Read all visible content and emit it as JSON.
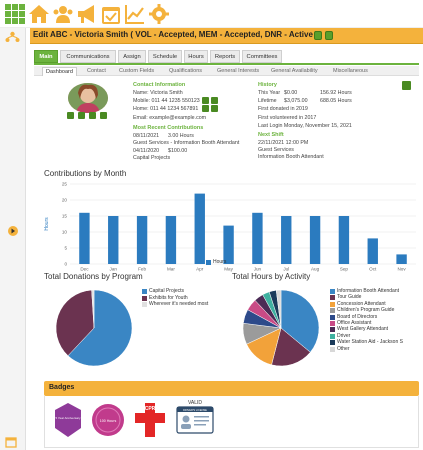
{
  "header": {
    "title": "Edit ABC - Victoria Smith ( VOL - Accepted, MEM - Accepted, DNR - Active )"
  },
  "toolbar_icons": [
    "grid-icon",
    "home-icon",
    "people-icon",
    "megaphone-icon",
    "calendar-check-icon",
    "trend-chart-icon",
    "gear-icon"
  ],
  "tabs": [
    "Main",
    "Communications",
    "Assign",
    "Schedule",
    "Hours",
    "Reports",
    "Committees"
  ],
  "active_tab": "Main",
  "subtabs": [
    "Dashboard",
    "Contact",
    "Custom Fields",
    "Qualifications",
    "General Interests",
    "General Availability",
    "Miscellaneous"
  ],
  "active_subtab": "Dashboard",
  "contact": {
    "heading": "Contact Information",
    "name": "Name: Victoria Smith",
    "mobile": "Mobile: 011 44 1235 550123",
    "home": "Home: 011 44 1234 567891",
    "email": "Email: example@example.com"
  },
  "contributions": {
    "heading": "Most Recent Contributions",
    "r1a": "08/11/2021",
    "r1b": "3.00 Hours",
    "r1c": "Guest Services - Information Booth Attendant",
    "r2a": "04/11/2020",
    "r2b": "$100.00",
    "r2c": "Capital Projects"
  },
  "history": {
    "heading": "History",
    "thisyear_label": "This Year",
    "thisyear_amount": "$0.00",
    "thisyear_hours": "156.92 Hours",
    "lifetime_label": "Lifetime",
    "lifetime_amount": "$3,075.00",
    "lifetime_hours": "688.05 Hours",
    "first_donated": "First donated in 2019",
    "first_volunteered": "First volunteered in 2017",
    "last_login": "Last Login Monday, November 15, 2021"
  },
  "next_shift": {
    "heading": "Next Shift",
    "date": "22/11/2021 12:00 PM",
    "dept": "Guest Services",
    "role": "Information Booth Attendant"
  },
  "contrib_by_month": {
    "title": "Contributions by Month",
    "ylabel": "Hours",
    "legend": "Hours",
    "color": "#2b7bbf"
  },
  "donations": {
    "title": "Total Donations by Program",
    "legend": [
      "Capital Projects",
      "Exhibits for Youth",
      "Wherever it's needed most"
    ],
    "colors": [
      "#3a86c4",
      "#6b3350",
      "#e0e0e0"
    ]
  },
  "activity": {
    "title": "Total Hours by Activity",
    "legend": [
      "Information Booth Attendant",
      "Tour Guide",
      "Concession Attendant",
      "Children's Program Guide",
      "Board of Directors",
      "Office Assistant",
      "West Gallery Attendant",
      "Driver",
      "Water Station Aid - Jackson S",
      "Other"
    ],
    "colors": [
      "#3a86c4",
      "#6b3350",
      "#f2a23a",
      "#9b9b9b",
      "#2d4a8a",
      "#c94a86",
      "#4b2a55",
      "#3fb0a0",
      "#1a3a5a",
      "#d8d8d8"
    ]
  },
  "badges": {
    "title": "Badges",
    "b1": "5 Year Anniversary",
    "b2": "100 Hours",
    "b3": "CPR",
    "b4a": "VALID",
    "b4b": "DRIVER'S LICENSE"
  },
  "chart_data": [
    {
      "type": "bar",
      "title": "Contributions by Month",
      "categories": [
        "Dec",
        "Jan",
        "Feb",
        "Mar",
        "Apr",
        "May",
        "Jun",
        "Jul",
        "Aug",
        "Sep",
        "Oct",
        "Nov"
      ],
      "series": [
        {
          "name": "Hours",
          "values": [
            16,
            15,
            15,
            15,
            22,
            12,
            16,
            15,
            15,
            15,
            8,
            3
          ]
        }
      ],
      "ylabel": "Hours",
      "ylim": [
        0,
        25
      ],
      "yticks": [
        0,
        5,
        10,
        15,
        20,
        25
      ],
      "grid": true,
      "legend": "bottom"
    },
    {
      "type": "pie",
      "title": "Total Donations by Program",
      "categories": [
        "Capital Projects",
        "Exhibits for Youth",
        "Wherever it's needed most"
      ],
      "values": [
        62,
        37,
        1
      ],
      "legend": "right"
    },
    {
      "type": "pie",
      "title": "Total Hours by Activity",
      "categories": [
        "Information Booth Attendant",
        "Tour Guide",
        "Concession Attendant",
        "Children's Program Guide",
        "Board of Directors",
        "Office Assistant",
        "West Gallery Attendant",
        "Driver",
        "Water Station Aid - Jackson S",
        "Other"
      ],
      "values": [
        36,
        18,
        14,
        9,
        6,
        5,
        4,
        3,
        3,
        2
      ],
      "legend": "right"
    }
  ]
}
